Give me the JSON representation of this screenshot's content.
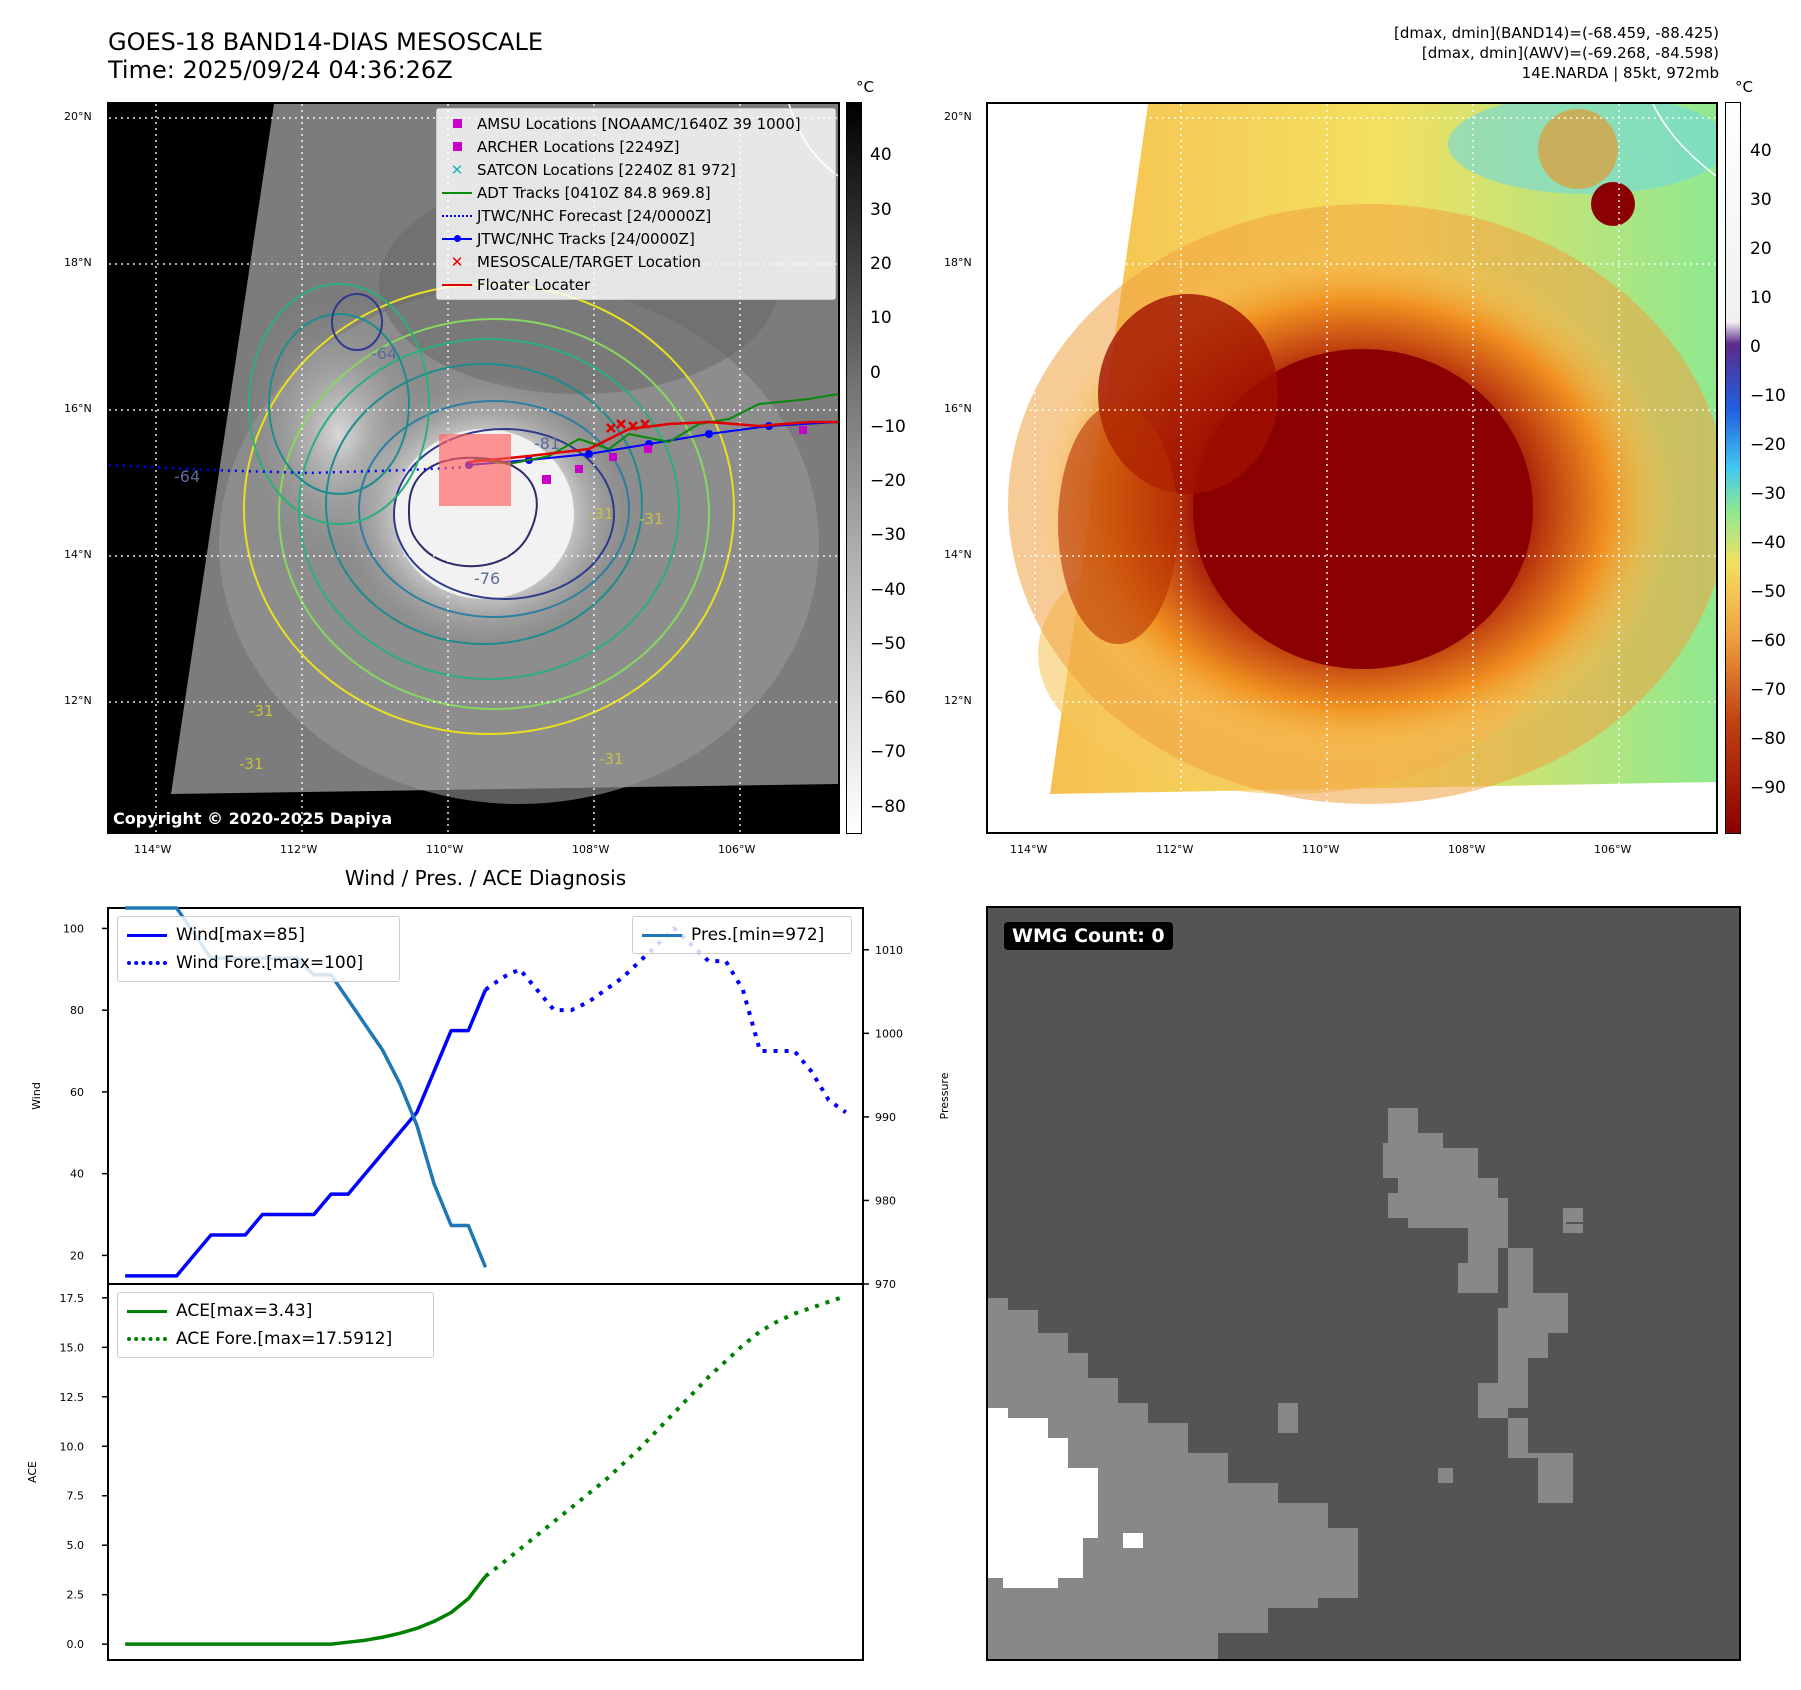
{
  "header": {
    "title_line1": "GOES-18 BAND14-DIAS MESOSCALE",
    "title_line2": "Time: 2025/09/24 04:36:26Z",
    "right_line1": "[dmax, dmin](BAND14)=(-68.459, -88.425)",
    "right_line2": "[dmax, dmin](AWV)=(-69.268, -84.598)",
    "right_line3": "14E.NARDA | 85kt, 972mb"
  },
  "map": {
    "lat_labels": [
      "20°N",
      "18°N",
      "16°N",
      "14°N",
      "12°N"
    ],
    "lon_labels": [
      "114°W",
      "112°W",
      "110°W",
      "108°W",
      "106°W"
    ],
    "copyright": "Copyright © 2020-2025 Dapiya",
    "contour_labels": [
      "-64",
      "-64",
      "-76",
      "-81",
      "-31",
      "-31",
      "-31",
      "-31",
      "-31"
    ],
    "legend": [
      {
        "label": "AMSU Locations [NOAAMC/1640Z 39 1000]",
        "symbol": "square",
        "color": "#c800c8"
      },
      {
        "label": "ARCHER Locations [2249Z]",
        "symbol": "square",
        "color": "#c800c8"
      },
      {
        "label": "SATCON Locations [2240Z 81 972]",
        "symbol": "x",
        "color": "#1ab8b8"
      },
      {
        "label": "ADT Tracks [0410Z 84.8 969.8]",
        "symbol": "line",
        "color": "#0a8a0a"
      },
      {
        "label": "JTWC/NHC Forecast [24/0000Z]",
        "symbol": "dotted",
        "color": "#0000ff"
      },
      {
        "label": "JTWC/NHC Tracks [24/0000Z]",
        "symbol": "line-dot",
        "color": "#0000ff"
      },
      {
        "label": "MESOSCALE/TARGET Location",
        "symbol": "x",
        "color": "#e00000"
      },
      {
        "label": "Floater Locater",
        "symbol": "line",
        "color": "#e00000"
      }
    ]
  },
  "colorbar_left": {
    "unit": "°C",
    "labels": [
      "40",
      "30",
      "20",
      "10",
      "0",
      "−10",
      "−20",
      "−30",
      "−40",
      "−50",
      "−60",
      "−70",
      "−80"
    ]
  },
  "colorbar_right": {
    "unit": "°C",
    "labels": [
      "40",
      "30",
      "20",
      "10",
      "0",
      "−10",
      "−20",
      "−30",
      "−40",
      "−50",
      "−60",
      "−70",
      "−80",
      "−90"
    ]
  },
  "wmg": {
    "label": "WMG Count: 0"
  },
  "chart_data": [
    {
      "type": "line",
      "title": "Wind / Pres. / ACE Diagnosis",
      "ylabel": "Wind",
      "ylabel_right": "Pressure",
      "ylim": [
        13,
        105
      ],
      "ylim_right": [
        970,
        1015
      ],
      "yticks": [
        20,
        40,
        60,
        80,
        100
      ],
      "yticks_right": [
        970,
        980,
        990,
        1000,
        1010
      ],
      "series": [
        {
          "name": "Wind[max=85]",
          "color": "#0000ff",
          "style": "solid",
          "axis": "left",
          "x": [
            0,
            1,
            2,
            3,
            4,
            5,
            6,
            7,
            8,
            9,
            10,
            11,
            12,
            13,
            14,
            15,
            16,
            17,
            18,
            19,
            20,
            21
          ],
          "values": [
            15,
            15,
            15,
            15,
            20,
            25,
            25,
            25,
            30,
            30,
            30,
            30,
            35,
            35,
            40,
            45,
            50,
            55,
            65,
            75,
            75,
            85
          ]
        },
        {
          "name": "Wind Fore.[max=100]",
          "color": "#0000ff",
          "style": "dotted",
          "axis": "left",
          "x": [
            21,
            22,
            23,
            24,
            25,
            26,
            27,
            28,
            29,
            30,
            31,
            32,
            33,
            34,
            35,
            36,
            37,
            38,
            39,
            40,
            41,
            42
          ],
          "values": [
            85,
            88,
            90,
            85,
            80,
            80,
            82,
            85,
            88,
            92,
            96,
            100,
            96,
            92,
            92,
            85,
            70,
            70,
            70,
            65,
            58,
            55
          ]
        },
        {
          "name": "Pres.[min=972]",
          "color": "#1f77b4",
          "style": "solid",
          "axis": "right",
          "x": [
            0,
            1,
            2,
            3,
            4,
            5,
            6,
            7,
            8,
            9,
            10,
            11,
            12,
            13,
            14,
            15,
            16,
            17,
            18,
            19,
            20,
            21
          ],
          "values": [
            1015,
            1015,
            1015,
            1015,
            1012,
            1009,
            1009,
            1009,
            1009,
            1009,
            1009,
            1007,
            1007,
            1004,
            1001,
            998,
            994,
            989,
            982,
            977,
            977,
            972
          ]
        }
      ]
    },
    {
      "type": "line",
      "ylabel": "ACE",
      "ylim": [
        -0.8,
        18.2
      ],
      "yticks": [
        0.0,
        2.5,
        5.0,
        7.5,
        10.0,
        12.5,
        15.0,
        17.5
      ],
      "series": [
        {
          "name": "ACE[max=3.43]",
          "color": "#008000",
          "style": "solid",
          "x": [
            0,
            2,
            4,
            6,
            8,
            10,
            12,
            13,
            14,
            15,
            16,
            17,
            18,
            19,
            20,
            21
          ],
          "values": [
            0,
            0,
            0,
            0,
            0,
            0,
            0,
            0.1,
            0.2,
            0.35,
            0.55,
            0.8,
            1.15,
            1.6,
            2.3,
            3.43
          ]
        },
        {
          "name": "ACE Fore.[max=17.5912]",
          "color": "#008000",
          "style": "dotted",
          "x": [
            21,
            22,
            23,
            24,
            25,
            26,
            27,
            28,
            29,
            30,
            31,
            32,
            33,
            34,
            35,
            36,
            37,
            38,
            39,
            40,
            41,
            42
          ],
          "values": [
            3.43,
            4.1,
            4.8,
            5.5,
            6.2,
            6.9,
            7.6,
            8.3,
            9.1,
            9.9,
            10.8,
            11.7,
            12.6,
            13.5,
            14.3,
            15.1,
            15.8,
            16.3,
            16.7,
            17.0,
            17.3,
            17.59
          ]
        }
      ]
    }
  ]
}
